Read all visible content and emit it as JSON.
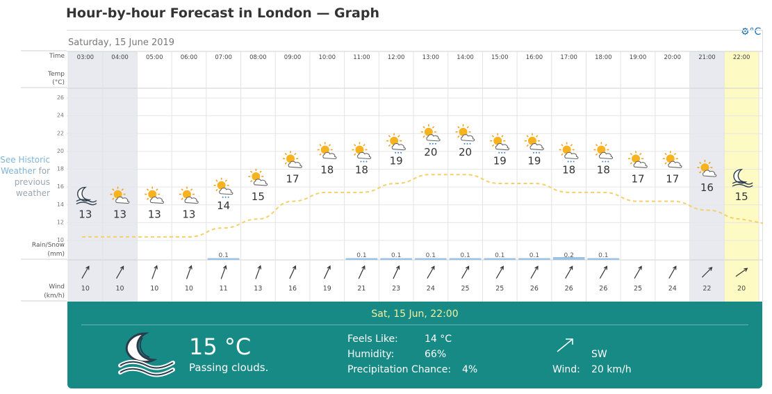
{
  "page": {
    "title": "Hour-by-hour Forecast in London — Graph",
    "unit_toggle": "⚙°C"
  },
  "historic": {
    "link_text": "See Historic Weather",
    "rest_text": "for previous weather"
  },
  "graph": {
    "date_header": "Saturday, 15 June 2019",
    "labels": {
      "time": "Time",
      "temp": "Temp",
      "temp_unit": "(°C)",
      "rain": "Rain/Snow",
      "rain_unit": "(mm)",
      "wind": "Wind",
      "wind_unit": "(km/h)"
    },
    "y_ticks": [
      26,
      24,
      22,
      20,
      18,
      16,
      14,
      12,
      10
    ],
    "hours": [
      {
        "time": "03:00",
        "temp": "13",
        "icon": "moon-cloud-icon",
        "rain": "",
        "wind": "10",
        "wind_dir": 30,
        "shaded": true
      },
      {
        "time": "04:00",
        "temp": "13",
        "icon": "sun-cloud-icon",
        "rain": "",
        "wind": "10",
        "wind_dir": 30,
        "shaded": true
      },
      {
        "time": "05:00",
        "temp": "13",
        "icon": "sun-cloud-icon",
        "rain": "",
        "wind": "10",
        "wind_dir": 20,
        "shaded": false
      },
      {
        "time": "06:00",
        "temp": "13",
        "icon": "sun-cloud-icon",
        "rain": "",
        "wind": "10",
        "wind_dir": 20,
        "shaded": false
      },
      {
        "time": "07:00",
        "temp": "14",
        "icon": "sun-cloud-rain-icon",
        "rain": "0.1",
        "wind": "11",
        "wind_dir": 20,
        "shaded": false
      },
      {
        "time": "08:00",
        "temp": "15",
        "icon": "sun-cloud-icon",
        "rain": "",
        "wind": "13",
        "wind_dir": 20,
        "shaded": false
      },
      {
        "time": "09:00",
        "temp": "17",
        "icon": "sun-cloud-icon",
        "rain": "",
        "wind": "16",
        "wind_dir": 25,
        "shaded": false
      },
      {
        "time": "10:00",
        "temp": "18",
        "icon": "sun-cloud-icon",
        "rain": "",
        "wind": "19",
        "wind_dir": 25,
        "shaded": false
      },
      {
        "time": "11:00",
        "temp": "18",
        "icon": "sun-cloud-rain-icon",
        "rain": "0.1",
        "wind": "21",
        "wind_dir": 25,
        "shaded": false
      },
      {
        "time": "12:00",
        "temp": "19",
        "icon": "sun-cloud-rain-icon",
        "rain": "0.1",
        "wind": "23",
        "wind_dir": 25,
        "shaded": false
      },
      {
        "time": "13:00",
        "temp": "20",
        "icon": "sun-cloud-rain-icon",
        "rain": "0.1",
        "wind": "24",
        "wind_dir": 30,
        "shaded": false
      },
      {
        "time": "14:00",
        "temp": "20",
        "icon": "sun-cloud-rain-icon",
        "rain": "0.1",
        "wind": "25",
        "wind_dir": 30,
        "shaded": false
      },
      {
        "time": "15:00",
        "temp": "19",
        "icon": "sun-cloud-rain-icon",
        "rain": "0.1",
        "wind": "25",
        "wind_dir": 30,
        "shaded": false
      },
      {
        "time": "16:00",
        "temp": "19",
        "icon": "sun-cloud-rain-icon",
        "rain": "0.1",
        "wind": "26",
        "wind_dir": 30,
        "shaded": false
      },
      {
        "time": "17:00",
        "temp": "18",
        "icon": "sun-cloud-rain-icon",
        "rain": "0.2",
        "wind": "26",
        "wind_dir": 30,
        "shaded": false
      },
      {
        "time": "18:00",
        "temp": "18",
        "icon": "sun-cloud-rain-icon",
        "rain": "0.1",
        "wind": "26",
        "wind_dir": 30,
        "shaded": false
      },
      {
        "time": "19:00",
        "temp": "17",
        "icon": "sun-cloud-icon",
        "rain": "",
        "wind": "25",
        "wind_dir": 30,
        "shaded": false
      },
      {
        "time": "20:00",
        "temp": "17",
        "icon": "sun-cloud-icon",
        "rain": "",
        "wind": "24",
        "wind_dir": 30,
        "shaded": false
      },
      {
        "time": "21:00",
        "temp": "16",
        "icon": "sun-cloud-icon",
        "rain": "",
        "wind": "22",
        "wind_dir": 45,
        "shaded": true
      },
      {
        "time": "22:00",
        "temp": "15",
        "icon": "moon-cloud-icon",
        "rain": "",
        "wind": "20",
        "wind_dir": 55,
        "shaded": false,
        "selected": true
      }
    ],
    "colors": {
      "shade": "#e8eaef",
      "selected": "#fdfac4",
      "temp_line": "#f5cf6a",
      "rain_bar": "#9cc3e4",
      "grid": "#e6e6e6"
    }
  },
  "detail": {
    "datetime": "Sat, 15 Jun, 22:00",
    "temperature": "15 °C",
    "description": "Passing clouds.",
    "feels_like_label": "Feels Like:",
    "feels_like_value": "14 °C",
    "humidity_label": "Humidity:",
    "humidity_value": "66%",
    "precip_label": "Precipitation Chance:",
    "precip_value": "4%",
    "wind_dir_label": "SW",
    "wind_label": "Wind:",
    "wind_value": "20 km/h",
    "colors": {
      "panel": "#178a86",
      "date": "#f4f0a0"
    }
  }
}
